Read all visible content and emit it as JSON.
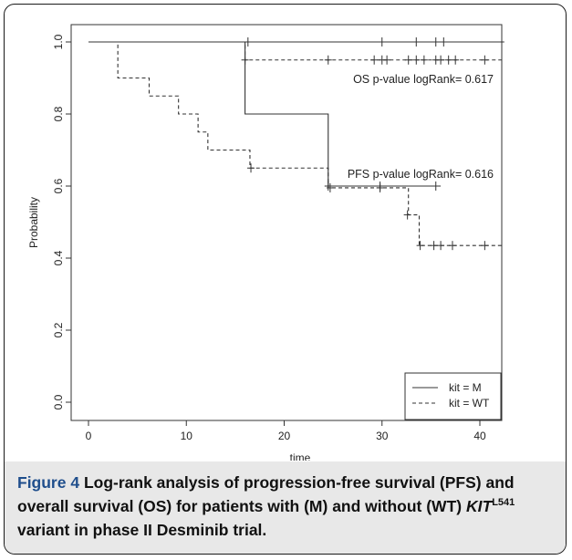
{
  "chart_data": {
    "type": "line",
    "subtype": "kaplan-meier",
    "xlabel": "time",
    "ylabel": "Probability",
    "xlim": [
      0,
      43
    ],
    "ylim": [
      0,
      1.0
    ],
    "xticks": [
      "0",
      "10",
      "20",
      "30",
      "40"
    ],
    "xtick_values": [
      0,
      10,
      20,
      30,
      40
    ],
    "yticks": [
      "0.0",
      "0.2",
      "0.4",
      "0.6",
      "0.8",
      "1.0"
    ],
    "ytick_values": [
      0.0,
      0.2,
      0.4,
      0.6,
      0.8,
      1.0
    ],
    "grid": false,
    "legend_position": "bottom-right",
    "series": [
      {
        "name": "kit = M",
        "style": "solid",
        "steps": [
          [
            0,
            1.0
          ],
          [
            42.5,
            1.0
          ]
        ],
        "censored": [
          [
            30,
            1.0
          ],
          [
            33.5,
            1.0
          ],
          [
            35.5,
            1.0
          ],
          [
            36.3,
            1.0
          ]
        ]
      },
      {
        "name": "kit = WT",
        "style": "dashed",
        "steps": [
          [
            0,
            1.0
          ],
          [
            16,
            1.0
          ],
          [
            16,
            0.95
          ],
          [
            42.5,
            0.95
          ]
        ],
        "censored": [
          [
            16,
            0.95
          ],
          [
            24.5,
            0.95
          ],
          [
            29.2,
            0.95
          ],
          [
            30,
            0.95
          ],
          [
            30.5,
            0.95
          ],
          [
            32.7,
            0.95
          ],
          [
            33.5,
            0.95
          ],
          [
            34.3,
            0.95
          ],
          [
            35.5,
            0.95
          ],
          [
            36,
            0.95
          ],
          [
            36.8,
            0.95
          ],
          [
            37.5,
            0.95
          ],
          [
            40.5,
            0.95
          ]
        ]
      },
      {
        "name": "kit = M",
        "style": "solid",
        "steps": [
          [
            0,
            1.0
          ],
          [
            16,
            1.0
          ],
          [
            16,
            0.8
          ],
          [
            24.5,
            0.8
          ],
          [
            24.5,
            0.6
          ],
          [
            36,
            0.6
          ]
        ],
        "censored": [
          [
            16.3,
            1.0
          ],
          [
            24.5,
            0.6
          ],
          [
            29.8,
            0.6
          ],
          [
            35.5,
            0.6
          ]
        ]
      },
      {
        "name": "kit = WT",
        "style": "dashed",
        "steps": [
          [
            0,
            1.0
          ],
          [
            3,
            1.0
          ],
          [
            3,
            0.9
          ],
          [
            6.2,
            0.9
          ],
          [
            6.2,
            0.85
          ],
          [
            9.2,
            0.85
          ],
          [
            9.2,
            0.8
          ],
          [
            11.2,
            0.8
          ],
          [
            11.2,
            0.75
          ],
          [
            12.2,
            0.75
          ],
          [
            12.2,
            0.7
          ],
          [
            16.5,
            0.7
          ],
          [
            16.5,
            0.65
          ],
          [
            24.5,
            0.65
          ],
          [
            24.5,
            0.595
          ],
          [
            32.7,
            0.595
          ],
          [
            32.7,
            0.52
          ],
          [
            33.8,
            0.52
          ],
          [
            33.8,
            0.435
          ],
          [
            42.5,
            0.435
          ]
        ],
        "censored": [
          [
            16.6,
            0.65
          ],
          [
            24.7,
            0.595
          ],
          [
            29.8,
            0.595
          ],
          [
            32.6,
            0.52
          ],
          [
            33.9,
            0.435
          ],
          [
            35.3,
            0.435
          ],
          [
            36,
            0.435
          ],
          [
            37.2,
            0.435
          ],
          [
            40.5,
            0.435
          ]
        ]
      }
    ],
    "annotations": [
      {
        "text": "OS p-value logRank= 0.617",
        "x": 37,
        "y": 0.9
      },
      {
        "text": "PFS p-value logRank= 0.616",
        "x": 36,
        "y": 0.63
      }
    ],
    "legend": [
      {
        "label": "kit = M",
        "style": "solid"
      },
      {
        "label": "kit = WT",
        "style": "dashed"
      }
    ]
  },
  "caption": {
    "label": "Figure 4",
    "text": "Log-rank analysis of progression-free survival (PFS) and overall survival (OS) for patients with (M) and without (WT)",
    "gene": "KIT",
    "gene_sup": "L541",
    "text_end": "variant in phase II Desminib trial."
  }
}
